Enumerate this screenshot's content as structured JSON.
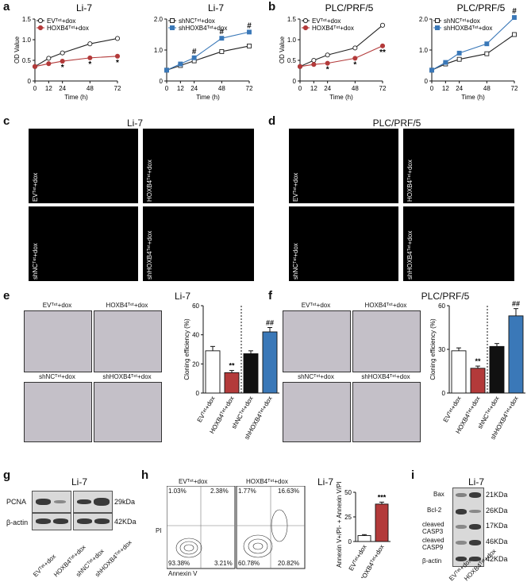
{
  "panels": {
    "a": {
      "label": "a",
      "title_left": "Li-7",
      "title_right": "Li-7"
    },
    "b": {
      "label": "b",
      "title_left": "PLC/PRF/5",
      "title_right": "PLC/PRF/5"
    },
    "c": {
      "label": "c",
      "title": "Li-7",
      "images": [
        "EVᵀᵉᵗ+dox",
        "HOXB4ᵀᵉᵗ+dox",
        "shNCᵀᵉᵗ+dox",
        "shHOXB4ᵀᵉᵗ+dox"
      ]
    },
    "d": {
      "label": "d",
      "title": "PLC/PRF/5",
      "images": [
        "EVᵀᵉᵗ+dox",
        "HOXB4ᵀᵉᵗ+dox",
        "shNCᵀᵉᵗ+dox",
        "shHOXB4ᵀᵉᵗ+dox"
      ]
    },
    "e": {
      "label": "e",
      "title": "Li-7",
      "images": [
        "EVᵀᵉᵗ+dox",
        "HOXB4ᵀᵉᵗ+dox",
        "shNCᵀᵉᵗ+dox",
        "shHOXB4ᵀᵉᵗ+dox"
      ]
    },
    "f": {
      "label": "f",
      "title": "PLC/PRF/5",
      "images": [
        "EVᵀᵉᵗ+dox",
        "HOXB4ᵀᵉᵗ+dox",
        "shNCᵀᵉᵗ+dox",
        "shHOXB4ᵀᵉᵗ+dox"
      ]
    },
    "g": {
      "label": "g",
      "title": "Li-7",
      "rows": [
        "PCNA",
        "β-actin"
      ],
      "sizes": [
        "29kDa",
        "42KDa"
      ],
      "lanes": [
        "EVᵀᵉᵗ+dox",
        "HOXB4ᵀᵉᵗ+dox",
        "shNCᵀᵉᵗ+dox",
        "shHOXB4ᵀᵉᵗ+dox"
      ]
    },
    "h": {
      "label": "h",
      "title": "Li-7",
      "flow_titles": [
        "EVᵀᵉᵗ+dox",
        "HOXB4ᵀᵉᵗ+dox"
      ],
      "quadrants": [
        [
          "1.03%",
          "2.38%",
          "93.38%",
          "3.21%"
        ],
        [
          "1.77%",
          "16.63%",
          "60.78%",
          "20.82%"
        ]
      ],
      "y_axis": "PI",
      "x_axis": "Annexin V"
    },
    "i": {
      "label": "i",
      "title": "Li-7",
      "rows": [
        "Bax",
        "Bcl-2",
        "cleaved CASP3",
        "cleaved CASP9",
        "β-actin"
      ],
      "sizes": [
        "21KDa",
        "26KDa",
        "17KDa",
        "46KDa",
        "42KDa"
      ],
      "lanes": [
        "EVᵀᵉᵗ+dox",
        "HOXB4ᵀᵉᵗ+dox"
      ]
    }
  },
  "chart_data": [
    {
      "id": "a-left",
      "type": "line",
      "title": "Li-7",
      "xlabel": "Time (h)",
      "ylabel": "OD Value",
      "x": [
        0,
        12,
        24,
        48,
        72
      ],
      "xlim": [
        0,
        72
      ],
      "ylim": [
        0,
        1.5
      ],
      "yticks": [
        0,
        0.5,
        1.0,
        1.5
      ],
      "series": [
        {
          "name": "EVᵀᵉᵗ+dox",
          "values": [
            0.35,
            0.55,
            0.68,
            0.9,
            1.03
          ],
          "color": "#222222",
          "marker": "open-circle"
        },
        {
          "name": "HOXB4ᵀᵉᵗ+dox",
          "values": [
            0.35,
            0.42,
            0.48,
            0.56,
            0.6
          ],
          "color": "#b33a3a",
          "marker": "filled-circle"
        }
      ],
      "annotations": [
        {
          "x": 24,
          "text": "*"
        },
        {
          "x": 48,
          "text": "*"
        },
        {
          "x": 72,
          "text": "*"
        }
      ]
    },
    {
      "id": "a-right",
      "type": "line",
      "title": "Li-7",
      "xlabel": "Time (h)",
      "ylabel": "",
      "x": [
        0,
        12,
        24,
        48,
        72
      ],
      "xlim": [
        0,
        72
      ],
      "ylim": [
        0,
        2.0
      ],
      "yticks": [
        0,
        1.0,
        2.0
      ],
      "series": [
        {
          "name": "shNCᵀᵉᵗ+dox",
          "values": [
            0.35,
            0.5,
            0.65,
            0.95,
            1.13
          ],
          "color": "#222222",
          "marker": "open-square"
        },
        {
          "name": "shHOXB4ᵀᵉᵗ+dox",
          "values": [
            0.35,
            0.55,
            0.75,
            1.38,
            1.58
          ],
          "color": "#3a78b8",
          "marker": "filled-square"
        }
      ],
      "annotations": [
        {
          "x": 24,
          "text": "#"
        },
        {
          "x": 48,
          "text": "#"
        },
        {
          "x": 72,
          "text": "#"
        }
      ]
    },
    {
      "id": "b-left",
      "type": "line",
      "title": "PLC/PRF/5",
      "xlabel": "Time (h)",
      "ylabel": "OD Value",
      "x": [
        0,
        12,
        24,
        48,
        72
      ],
      "xlim": [
        0,
        72
      ],
      "ylim": [
        0,
        1.5
      ],
      "yticks": [
        0,
        0.5,
        1.0,
        1.5
      ],
      "series": [
        {
          "name": "EVᵀᵉᵗ+dox",
          "values": [
            0.35,
            0.5,
            0.63,
            0.8,
            1.35
          ],
          "color": "#222222",
          "marker": "open-circle"
        },
        {
          "name": "HOXB4ᵀᵉᵗ+dox",
          "values": [
            0.35,
            0.4,
            0.43,
            0.55,
            0.85
          ],
          "color": "#b33a3a",
          "marker": "filled-circle"
        }
      ],
      "annotations": [
        {
          "x": 24,
          "text": "*"
        },
        {
          "x": 48,
          "text": "*"
        },
        {
          "x": 72,
          "text": "**"
        }
      ]
    },
    {
      "id": "b-right",
      "type": "line",
      "title": "PLC/PRF/5",
      "xlabel": "Time (h)",
      "ylabel": "",
      "x": [
        0,
        12,
        24,
        48,
        72
      ],
      "xlim": [
        0,
        72
      ],
      "ylim": [
        0,
        2.0
      ],
      "yticks": [
        0,
        1.0,
        2.0
      ],
      "series": [
        {
          "name": "shNCᵀᵉᵗ+dox",
          "values": [
            0.35,
            0.55,
            0.7,
            0.88,
            1.5
          ],
          "color": "#222222",
          "marker": "open-square"
        },
        {
          "name": "shHOXB4ᵀᵉᵗ+dox",
          "values": [
            0.35,
            0.6,
            0.9,
            1.2,
            2.05
          ],
          "color": "#3a78b8",
          "marker": "filled-square"
        }
      ],
      "annotations": [
        {
          "x": 72,
          "text": "#"
        }
      ]
    },
    {
      "id": "e-bar",
      "type": "bar",
      "ylabel": "Cloning efficiency (%)",
      "ylim": [
        0,
        60
      ],
      "yticks": [
        0,
        20,
        40,
        60
      ],
      "categories": [
        "EVᵀᵉᵗ+dox",
        "HOXB4ᵀᵉᵗ+dox",
        "shNCᵀᵉᵗ+dox",
        "shHOXB4ᵀᵉᵗ+dox"
      ],
      "values": [
        29,
        14,
        27,
        42
      ],
      "errors": [
        3,
        1.5,
        2,
        3
      ],
      "colors": [
        "#ffffff",
        "#b33a3a",
        "#111111",
        "#3a78b8"
      ],
      "annotations": [
        "",
        "**",
        "",
        "##"
      ]
    },
    {
      "id": "f-bar",
      "type": "bar",
      "ylabel": "Cloning efficiency (%)",
      "ylim": [
        0,
        60
      ],
      "yticks": [
        0,
        30,
        60
      ],
      "categories": [
        "EVᵀᵉᵗ+dox",
        "HOXB4ᵀᵉᵗ+dox",
        "shNCᵀᵉᵗ+dox",
        "shHOXB4ᵀᵉᵗ+dox"
      ],
      "values": [
        29,
        17,
        32,
        53
      ],
      "errors": [
        2,
        1.5,
        2,
        5
      ],
      "colors": [
        "#ffffff",
        "#b33a3a",
        "#111111",
        "#3a78b8"
      ],
      "annotations": [
        "",
        "**",
        "",
        "##"
      ]
    },
    {
      "id": "h-bar",
      "type": "bar",
      "ylabel": "Annexin V+/PI- + Annexin V/PI+ (%)",
      "ylim": [
        0,
        50
      ],
      "yticks": [
        0,
        25,
        50
      ],
      "categories": [
        "EVᵀᵉᵗ+dox",
        "HOXB4ᵀᵉᵗ+dox"
      ],
      "values": [
        6,
        38
      ],
      "errors": [
        1,
        2
      ],
      "colors": [
        "#ffffff",
        "#b33a3a"
      ],
      "annotations": [
        "",
        "***"
      ]
    }
  ]
}
